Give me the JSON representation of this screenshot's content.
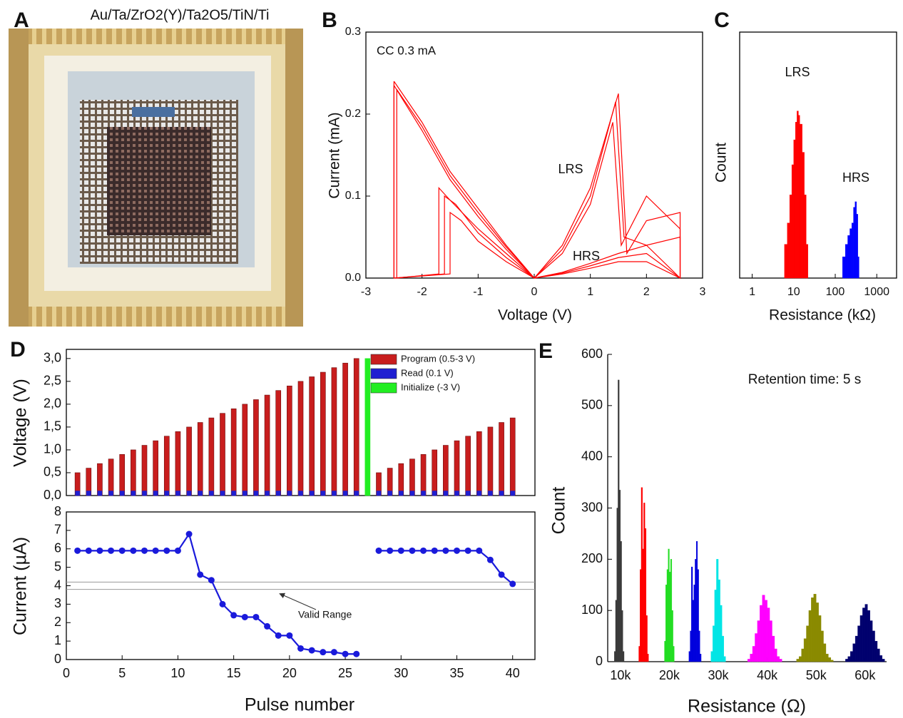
{
  "photo": {
    "panel": "A",
    "caption": "Au/Ta/ZrO2(Y)/Ta2O5/TiN/Ti"
  },
  "chart_data": [
    {
      "type": "line",
      "panel": "B",
      "annotations": [
        "CC 0.3 mA",
        "LRS",
        "HRS"
      ],
      "xlabel": "Voltage (V)",
      "ylabel": "Current (mA)",
      "xlim": [
        -3,
        3
      ],
      "xticks": [
        -3,
        -2,
        -1,
        0,
        1,
        2,
        3
      ],
      "ylim": [
        0,
        0.3
      ],
      "yticks": [
        {
          "value": 0,
          "label": "0.0"
        },
        0.1,
        0.2,
        0.3
      ],
      "series": [
        {
          "color": "#ff0000",
          "x": [
            -2.5,
            -2.0,
            -1.5,
            -1.0,
            -0.5,
            0,
            0.5,
            1.0,
            1.45,
            1.6,
            2.0,
            2.6,
            2.6,
            2.0,
            1.5,
            1.0,
            0.5,
            0,
            -0.5,
            -1.0,
            -1.4,
            -1.6,
            -1.6,
            -2.5,
            -2.5
          ],
          "values": [
            0.24,
            0.19,
            0.13,
            0.085,
            0.04,
            0,
            0.035,
            0.1,
            0.215,
            0.05,
            0.04,
            0.05,
            0.0,
            0.02,
            0.02,
            0.012,
            0.005,
            0,
            0.025,
            0.055,
            0.09,
            0.1,
            0.005,
            0.0,
            0.24
          ]
        },
        {
          "color": "#ff0000",
          "x": [
            -2.5,
            -2.0,
            -1.5,
            -1.0,
            -0.5,
            0,
            0.5,
            1.0,
            1.4,
            1.55,
            2.0,
            2.6,
            2.6,
            2.0,
            1.5,
            1.0,
            0.5,
            0,
            -0.5,
            -1.0,
            -1.3,
            -1.5,
            -1.5,
            -2.5,
            -2.5
          ],
          "values": [
            0.235,
            0.18,
            0.12,
            0.075,
            0.035,
            0,
            0.03,
            0.09,
            0.19,
            0.04,
            0.1,
            0.06,
            0.0,
            0.03,
            0.025,
            0.015,
            0.006,
            0,
            0.02,
            0.045,
            0.07,
            0.08,
            0.005,
            0.0,
            0.235
          ]
        },
        {
          "color": "#ff0000",
          "x": [
            -2.45,
            -2.0,
            -1.5,
            -1.0,
            -0.5,
            0,
            0.5,
            1.0,
            1.5,
            1.65,
            2.0,
            2.6,
            2.6,
            2.0,
            1.5,
            1.0,
            0.5,
            0,
            -0.5,
            -1.0,
            -1.5,
            -1.7,
            -1.7,
            -2.45,
            -2.45
          ],
          "values": [
            0.23,
            0.185,
            0.125,
            0.08,
            0.038,
            0,
            0.04,
            0.11,
            0.225,
            0.03,
            0.07,
            0.08,
            0.0,
            0.04,
            0.03,
            0.018,
            0.007,
            0,
            0.03,
            0.06,
            0.095,
            0.11,
            0.005,
            0.0,
            0.23
          ]
        }
      ]
    },
    {
      "type": "histogram",
      "panel": "C",
      "annotations": [
        "LRS",
        "HRS"
      ],
      "xlabel": "Resistance (kΩ)",
      "ylabel": "Count",
      "xlog": true,
      "ylog": true,
      "xlim": [
        0.5,
        3000
      ],
      "xticks": [
        1,
        10,
        100,
        1000
      ],
      "ylim": [
        1,
        3000
      ],
      "series": [
        {
          "color": "#ff0000",
          "bins": [
            5,
            6,
            7,
            8,
            9,
            10,
            11,
            12,
            13,
            14,
            16,
            18,
            20,
            22
          ],
          "values": [
            1,
            3,
            6,
            15,
            40,
            90,
            160,
            230,
            200,
            150,
            60,
            15,
            3
          ]
        },
        {
          "color": "#0000ff",
          "bins": [
            150,
            175,
            200,
            225,
            250,
            275,
            300,
            325,
            350,
            375
          ],
          "values": [
            2,
            3,
            4,
            5,
            6,
            10,
            12,
            8,
            2
          ]
        }
      ]
    },
    {
      "type": "bar",
      "panel": "D",
      "ylabel": "Voltage (V)",
      "x": [
        1,
        2,
        3,
        4,
        5,
        6,
        7,
        8,
        9,
        10,
        11,
        12,
        13,
        14,
        15,
        16,
        17,
        18,
        19,
        20,
        21,
        22,
        23,
        24,
        25,
        26,
        27,
        28,
        29,
        30,
        31,
        32,
        33,
        34,
        35,
        36,
        37,
        38,
        39,
        40
      ],
      "xlim": [
        0,
        42
      ],
      "ylim": [
        0,
        3.2
      ],
      "yticks": [
        {
          "value": 0,
          "label": "0,0"
        },
        {
          "value": 0.5,
          "label": "0,5"
        },
        {
          "value": 1,
          "label": "1,0"
        },
        {
          "value": 1.5,
          "label": "1,5"
        },
        {
          "value": 2,
          "label": "2,0"
        },
        {
          "value": 2.5,
          "label": "2,5"
        },
        {
          "value": 3,
          "label": "3,0"
        }
      ],
      "legend": "upper right",
      "series": [
        {
          "name": "Program (0.5-3 V)",
          "color": "#c81d1d",
          "values": [
            0.5,
            0.6,
            0.7,
            0.8,
            0.9,
            1.0,
            1.1,
            1.2,
            1.3,
            1.4,
            1.5,
            1.6,
            1.7,
            1.8,
            1.9,
            2.0,
            2.1,
            2.2,
            2.3,
            2.4,
            2.5,
            2.6,
            2.7,
            2.8,
            2.9,
            3.0,
            null,
            0.5,
            0.6,
            0.7,
            0.8,
            0.9,
            1.0,
            1.1,
            1.2,
            1.3,
            1.4,
            1.5,
            1.6,
            1.7
          ]
        },
        {
          "name": "Read (0.1 V)",
          "color": "#1f1fd1",
          "values": [
            0.1,
            0.1,
            0.1,
            0.1,
            0.1,
            0.1,
            0.1,
            0.1,
            0.1,
            0.1,
            0.1,
            0.1,
            0.1,
            0.1,
            0.1,
            0.1,
            0.1,
            0.1,
            0.1,
            0.1,
            0.1,
            0.1,
            0.1,
            0.1,
            0.1,
            0.1,
            null,
            0.1,
            0.1,
            0.1,
            0.1,
            0.1,
            0.1,
            0.1,
            0.1,
            0.1,
            0.1,
            0.1,
            0.1,
            0.1
          ]
        },
        {
          "name": "Initialize (-3 V)",
          "color": "#22ee22",
          "values": [
            null,
            null,
            null,
            null,
            null,
            null,
            null,
            null,
            null,
            null,
            null,
            null,
            null,
            null,
            null,
            null,
            null,
            null,
            null,
            null,
            null,
            null,
            null,
            null,
            null,
            null,
            3.0,
            null,
            null,
            null,
            null,
            null,
            null,
            null,
            null,
            null,
            null,
            null,
            null,
            null
          ]
        }
      ]
    },
    {
      "type": "line",
      "annotations": [
        "Valid Range"
      ],
      "xlabel": "Pulse number",
      "ylabel": "Current (µA)",
      "x": [
        1,
        2,
        3,
        4,
        5,
        6,
        7,
        8,
        9,
        10,
        11,
        12,
        13,
        14,
        15,
        16,
        17,
        18,
        19,
        20,
        21,
        22,
        23,
        24,
        25,
        26,
        27,
        28,
        29,
        30,
        31,
        32,
        33,
        34,
        35,
        36,
        37,
        38,
        39,
        40
      ],
      "xlim": [
        0,
        42
      ],
      "xticks": [
        0,
        5,
        10,
        15,
        20,
        25,
        30,
        35,
        40
      ],
      "ylim": [
        0,
        8
      ],
      "yticks": [
        0,
        1,
        2,
        3,
        4,
        5,
        6,
        7,
        8
      ],
      "hlines": [
        3.8,
        4.2
      ],
      "markers": true,
      "series": [
        {
          "color": "#1a1adb",
          "values": [
            5.9,
            5.9,
            5.9,
            5.9,
            5.9,
            5.9,
            5.9,
            5.9,
            5.9,
            5.9,
            6.8,
            4.6,
            4.3,
            3.0,
            2.4,
            2.3,
            2.3,
            1.8,
            1.3,
            1.3,
            0.6,
            0.5,
            0.4,
            0.4,
            0.3,
            0.3,
            null,
            5.9,
            5.9,
            5.9,
            5.9,
            5.9,
            5.9,
            5.9,
            5.9,
            5.9,
            5.9,
            5.4,
            4.6,
            4.1
          ]
        }
      ]
    },
    {
      "type": "histogram",
      "panel": "E",
      "annotations": [
        "Retention time: 5 s"
      ],
      "xlabel": "Resistance (Ω)",
      "ylabel": "Count",
      "xlim": [
        7400,
        64400
      ],
      "xticks": [
        {
          "value": 10000,
          "label": "10k"
        },
        {
          "value": 20000,
          "label": "20k"
        },
        {
          "value": 30000,
          "label": "30k"
        },
        {
          "value": 40000,
          "label": "40k"
        },
        {
          "value": 50000,
          "label": "50k"
        },
        {
          "value": 60000,
          "label": "60k"
        }
      ],
      "ylim": [
        0,
        600
      ],
      "yticks": [
        0,
        100,
        200,
        300,
        400,
        500,
        600
      ],
      "series": [
        {
          "color": "#3a3a3a",
          "bins": [
            8750,
            9000,
            9250,
            9500,
            9750,
            10000,
            10250,
            10500,
            10750
          ],
          "values": [
            20,
            120,
            300,
            550,
            335,
            235,
            100,
            20
          ]
        },
        {
          "color": "#ff0000",
          "bins": [
            13750,
            14000,
            14250,
            14500,
            14750,
            15000,
            15250,
            15500,
            15750
          ],
          "values": [
            30,
            180,
            340,
            220,
            310,
            260,
            90,
            15
          ]
        },
        {
          "color": "#22dd22",
          "bins": [
            19000,
            19250,
            19500,
            19750,
            20000,
            20250,
            20500,
            20750,
            21000
          ],
          "values": [
            40,
            150,
            180,
            220,
            175,
            200,
            100,
            30
          ]
        },
        {
          "color": "#0000dd",
          "bins": [
            24000,
            24250,
            24500,
            24750,
            25000,
            25250,
            25500,
            25750,
            26000,
            26250,
            26500
          ],
          "values": [
            20,
            60,
            185,
            120,
            150,
            200,
            235,
            180,
            60,
            15
          ]
        },
        {
          "color": "#00e5e5",
          "bins": [
            28500,
            28875,
            29250,
            29625,
            30000,
            30375,
            30750,
            31125,
            31500
          ],
          "values": [
            20,
            70,
            140,
            200,
            160,
            110,
            50,
            10
          ]
        },
        {
          "color": "#ff00ff",
          "bins": [
            36000,
            36500,
            37000,
            37500,
            38000,
            38500,
            39000,
            39500,
            40000,
            40500,
            41000,
            41500,
            42000,
            42500,
            43000
          ],
          "values": [
            5,
            15,
            30,
            55,
            80,
            110,
            130,
            120,
            105,
            80,
            50,
            25,
            10,
            5
          ]
        },
        {
          "color": "#8a8a00",
          "bins": [
            46000,
            46500,
            47000,
            47500,
            48000,
            48500,
            49000,
            49500,
            50000,
            50500,
            51000,
            51500,
            52000,
            52500,
            53000,
            53500
          ],
          "values": [
            5,
            10,
            25,
            45,
            70,
            100,
            125,
            132,
            115,
            90,
            60,
            35,
            15,
            8,
            3
          ]
        },
        {
          "color": "#00006e",
          "bins": [
            56000,
            56500,
            57000,
            57500,
            58000,
            58500,
            59000,
            59500,
            60000,
            60500,
            61000,
            61500,
            62000,
            62500,
            63000,
            63500,
            64000
          ],
          "values": [
            5,
            10,
            20,
            35,
            50,
            70,
            90,
            105,
            112,
            100,
            80,
            60,
            40,
            25,
            12,
            5
          ]
        }
      ]
    }
  ]
}
